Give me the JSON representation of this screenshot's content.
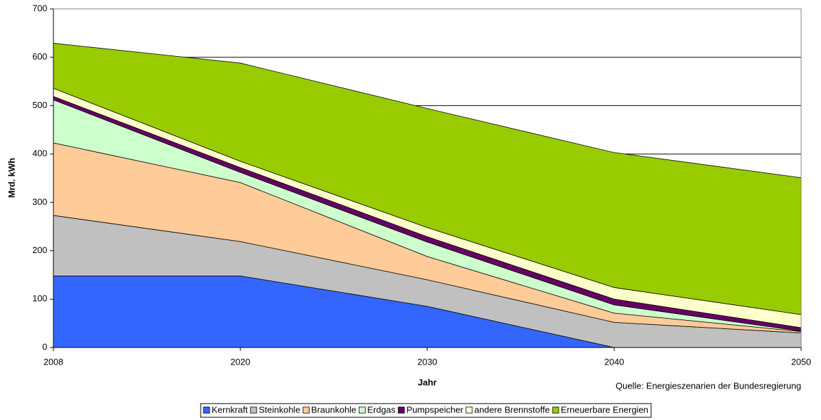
{
  "chart_data": {
    "type": "stacked_area",
    "x_label": "Jahr",
    "y_label": "Mrd. kWh",
    "source": "Quelle: Energieszenarien der Bundesregierung",
    "categories": [
      "2008",
      "2020",
      "2030",
      "2040",
      "2050"
    ],
    "series": [
      {
        "name": "Kernkraft",
        "color": "#3366ff",
        "values": [
          148,
          148,
          85,
          0,
          0
        ]
      },
      {
        "name": "Steinkohle",
        "color": "#c0c0c0",
        "values": [
          125,
          71,
          55,
          52,
          30
        ]
      },
      {
        "name": "Braunkohle",
        "color": "#ffcc99",
        "values": [
          150,
          122,
          48,
          19,
          3
        ]
      },
      {
        "name": "Erdgas",
        "color": "#ccffcc",
        "values": [
          89,
          21,
          30,
          17,
          1
        ]
      },
      {
        "name": "Pumpspeicher",
        "color": "#660066",
        "values": [
          7,
          10,
          11,
          12,
          7
        ]
      },
      {
        "name": "andere Brennstoffe",
        "color": "#ffffcc",
        "values": [
          17,
          13,
          19,
          24,
          27
        ]
      },
      {
        "name": "Erneuerbare Energien",
        "color": "#99cc00",
        "values": [
          93,
          203,
          246,
          279,
          283
        ]
      }
    ],
    "ylim": [
      0,
      700
    ],
    "yticks": [
      0,
      100,
      200,
      300,
      400,
      500,
      600,
      700
    ],
    "grid": true,
    "legend": "bottom"
  }
}
